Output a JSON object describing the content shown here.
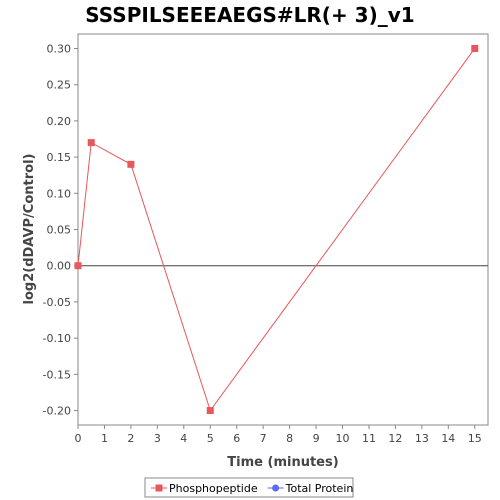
{
  "chart_data": {
    "type": "line",
    "title": "SSSPILSEEEAEGS#LR(+ 3)_v1",
    "xlabel": "Time (minutes)",
    "ylabel": "log2(dDAVP/Control)",
    "xlim": [
      0,
      15.5
    ],
    "ylim": [
      -0.22,
      0.32
    ],
    "xticks": [
      0,
      1,
      2,
      3,
      4,
      5,
      6,
      7,
      8,
      9,
      10,
      11,
      12,
      13,
      14,
      15
    ],
    "xtick_labels": [
      "0",
      "1",
      "2",
      "3",
      "4",
      "5",
      "6",
      "7",
      "8",
      "9",
      "10",
      "11",
      "12",
      "13",
      "14",
      "15"
    ],
    "yticks": [
      0.3,
      0.25,
      0.2,
      0.15,
      0.1,
      0.05,
      0,
      -0.05,
      -0.1,
      -0.15,
      -0.2
    ],
    "ytick_labels": [
      "0.30",
      "0.25",
      "0.20",
      "0.15",
      "0.10",
      "0.05",
      "0.00",
      "-0.05",
      "-0.10",
      "-0.15",
      "-0.20"
    ],
    "grid": false,
    "legend_position": "bottom-center",
    "zero_line": true,
    "series": [
      {
        "name": "Phosphopeptide",
        "color": "#e8575a",
        "marker": "square",
        "x": [
          0,
          0.5,
          2,
          5,
          15
        ],
        "y": [
          0.0,
          0.17,
          0.14,
          -0.2,
          0.3
        ]
      },
      {
        "name": "Total Protein",
        "color": "#5b6cf0",
        "marker": "circle",
        "x": [],
        "y": []
      }
    ]
  }
}
